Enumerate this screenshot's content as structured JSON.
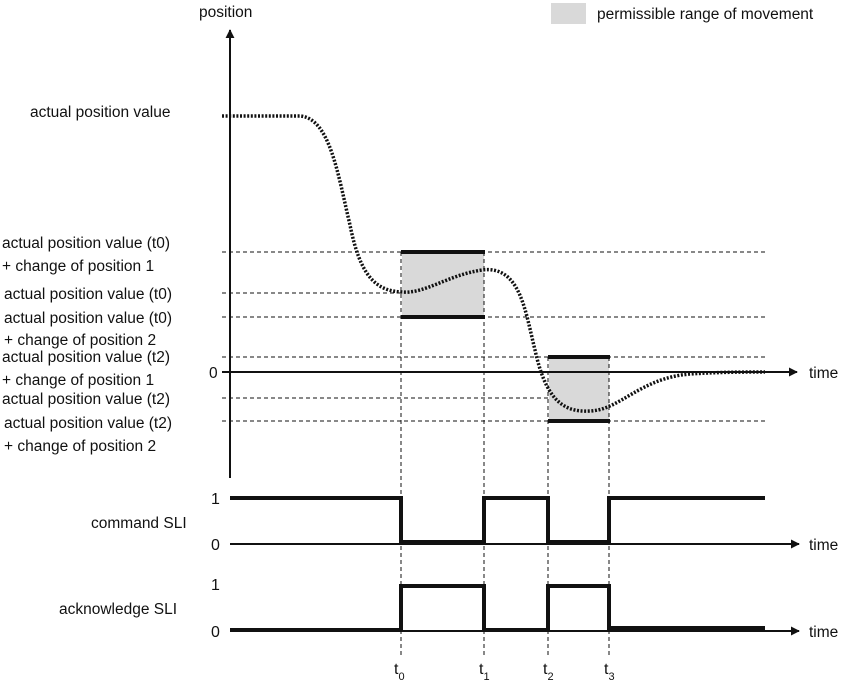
{
  "legend": {
    "label": "permissible range of movement",
    "swatch_color": "#d9d9d9"
  },
  "position_chart": {
    "y_axis_label": "position",
    "x_axis_label": "time",
    "zero_label": "0",
    "labels": {
      "actual": "actual position value",
      "t0_plus_1_a": "actual position value (t0)",
      "t0_plus_1_b": "+ change of position 1",
      "t0_value": "actual position value (t0)",
      "t0_plus_2_a": "actual position value (t0)",
      "t0_plus_2_b": "+ change of position 2",
      "t2_plus_1_a": "actual position value (t2)",
      "t2_plus_1_b": "+ change of position 1",
      "t2_value": "actual position value (t2)",
      "t2_plus_2_a": "actual position value (t2)",
      "t2_plus_2_b": "+ change of position 2"
    }
  },
  "command_chart": {
    "label": "command SLI",
    "high": "1",
    "low": "0",
    "x_axis_label": "time"
  },
  "acknowledge_chart": {
    "label": "acknowledge SLI",
    "high": "1",
    "low": "0",
    "x_axis_label": "time"
  },
  "time_markers": [
    {
      "main": "t",
      "sub": "0"
    },
    {
      "main": "t",
      "sub": "1"
    },
    {
      "main": "t",
      "sub": "2"
    },
    {
      "main": "t",
      "sub": "3"
    }
  ],
  "colors": {
    "line": "#111111",
    "range_fill": "#d9d9d9"
  }
}
